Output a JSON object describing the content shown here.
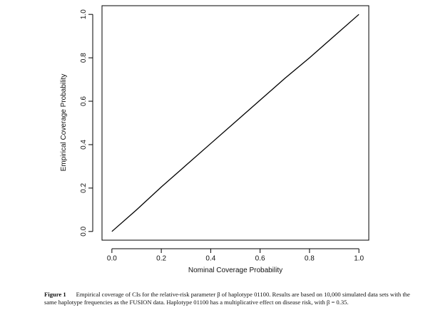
{
  "chart_data": {
    "type": "line",
    "x_label": "Nominal Coverage Probability",
    "y_label": "Empirical Coverage Probability",
    "x": [
      0,
      0.1,
      0.2,
      0.3,
      0.4,
      0.5,
      0.6,
      0.7,
      0.8,
      0.9,
      1
    ],
    "values": [
      0,
      0.1,
      0.205,
      0.305,
      0.405,
      0.505,
      0.605,
      0.705,
      0.8,
      0.9,
      1
    ],
    "color": "#000000",
    "xlim": [
      -0.04,
      1.04
    ],
    "ylim": [
      -0.04,
      1.04
    ],
    "xticks": [
      {
        "value": 0,
        "label": "0.0"
      },
      0.2,
      0.4,
      0.6,
      0.8,
      {
        "value": 1,
        "label": "1.0"
      }
    ],
    "yticks": [
      {
        "value": 0,
        "label": "0.0"
      },
      0.2,
      0.4,
      0.6,
      0.8,
      {
        "value": 1,
        "label": "1.0"
      }
    ],
    "figure_label": "Figure 1",
    "caption": "Empirical coverage of CIs for the relative-risk parameter β of haplotype 01100. Results are based on 10,000 simulated data sets with the same haplotype frequencies as the FUSION data. Haplotype 01100 has a multiplicative effect on disease risk, with β = 0.35."
  }
}
